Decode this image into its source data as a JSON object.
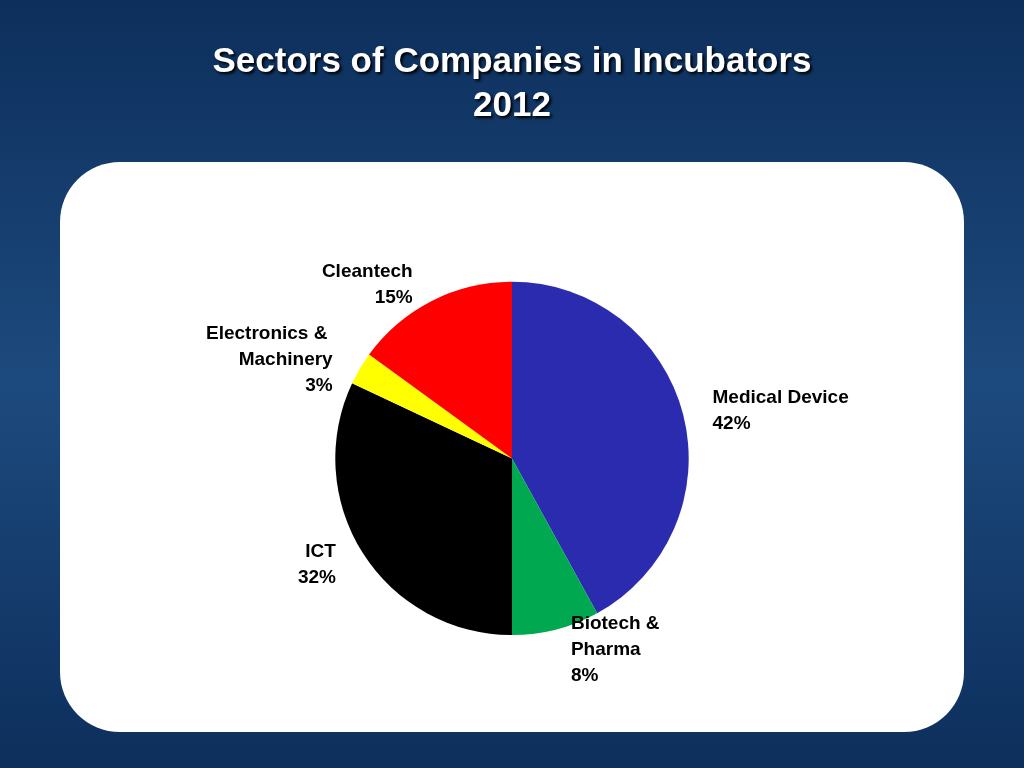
{
  "chart_data": {
    "type": "pie",
    "title": "Sectors of Companies in Incubators 2012",
    "categories": [
      "Medical Device",
      "Biotech & Pharma",
      "ICT",
      "Electronics & Machinery",
      "Cleantech"
    ],
    "values": [
      42,
      8,
      32,
      3,
      15
    ],
    "colors": [
      "#2b2bb0",
      "#00a84f",
      "#000000",
      "#ffff00",
      "#ff0000"
    ],
    "value_labels": [
      "42%",
      "8%",
      "32%",
      "3%",
      "15%"
    ],
    "legend": false
  }
}
